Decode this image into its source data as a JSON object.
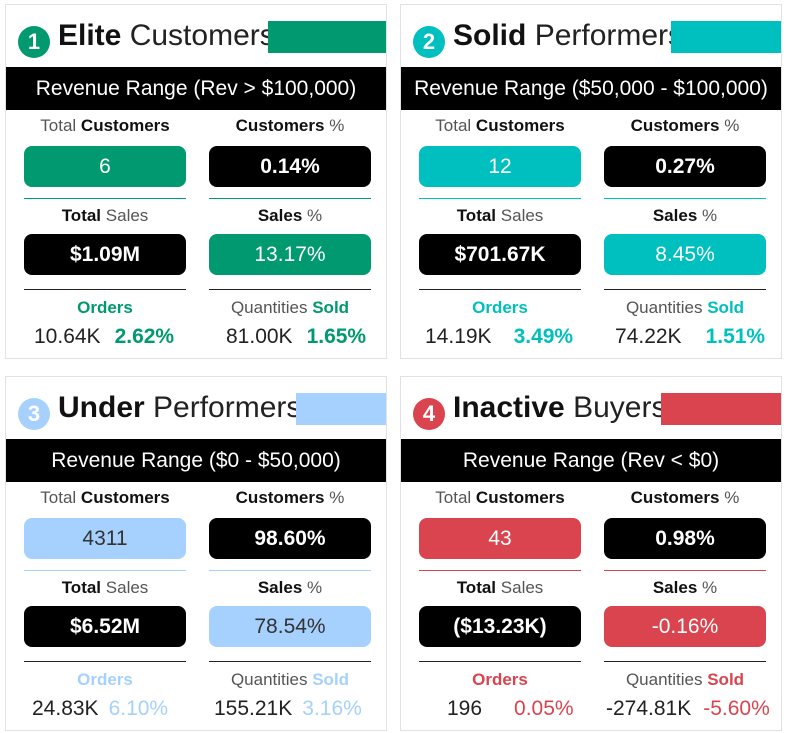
{
  "labels": {
    "total": "Total",
    "customers": "Customers",
    "sales": "Sales",
    "percent": "%",
    "orders": "Orders",
    "quantities": "Quantities",
    "sold": "Sold"
  },
  "cards": [
    {
      "number": "1",
      "title_bold": "Elite",
      "title_rest": "Customers",
      "color": "#009970",
      "revenue_range": "Revenue Range (Rev > $100,000)",
      "total_customers": "6",
      "customers_pct": "0.14%",
      "total_sales": "$1.09M",
      "sales_pct": "13.17%",
      "orders": "10.64K",
      "orders_pct": "2.62%",
      "quantities": "81.00K",
      "quantities_pct": "1.65%"
    },
    {
      "number": "2",
      "title_bold": "Solid",
      "title_rest": "Performers",
      "color": "#00BFBF",
      "revenue_range": "Revenue Range ($50,000 - $100,000)",
      "total_customers": "12",
      "customers_pct": "0.27%",
      "total_sales": "$701.67K",
      "sales_pct": "8.45%",
      "orders": "14.19K",
      "orders_pct": "3.49%",
      "quantities": "74.22K",
      "quantities_pct": "1.51%"
    },
    {
      "number": "3",
      "title_bold": "Under",
      "title_rest": "Performers",
      "color": "#A6D1FF",
      "revenue_range": "Revenue Range ($0 - $50,000)",
      "total_customers": "4311",
      "customers_pct": "98.60%",
      "total_sales": "$6.52M",
      "sales_pct": "78.54%",
      "orders": "24.83K",
      "orders_pct": "6.10%",
      "quantities": "155.21K",
      "quantities_pct": "3.16%"
    },
    {
      "number": "4",
      "title_bold": "Inactive",
      "title_rest": "Buyers",
      "color": "#D9444F",
      "revenue_range": "Revenue Range (Rev < $0)",
      "total_customers": "43",
      "customers_pct": "0.98%",
      "total_sales": "($13.23K)",
      "sales_pct": "-0.16%",
      "orders": "196",
      "orders_pct": "0.05%",
      "quantities": "-274.81K",
      "quantities_pct": "-5.60%"
    }
  ]
}
